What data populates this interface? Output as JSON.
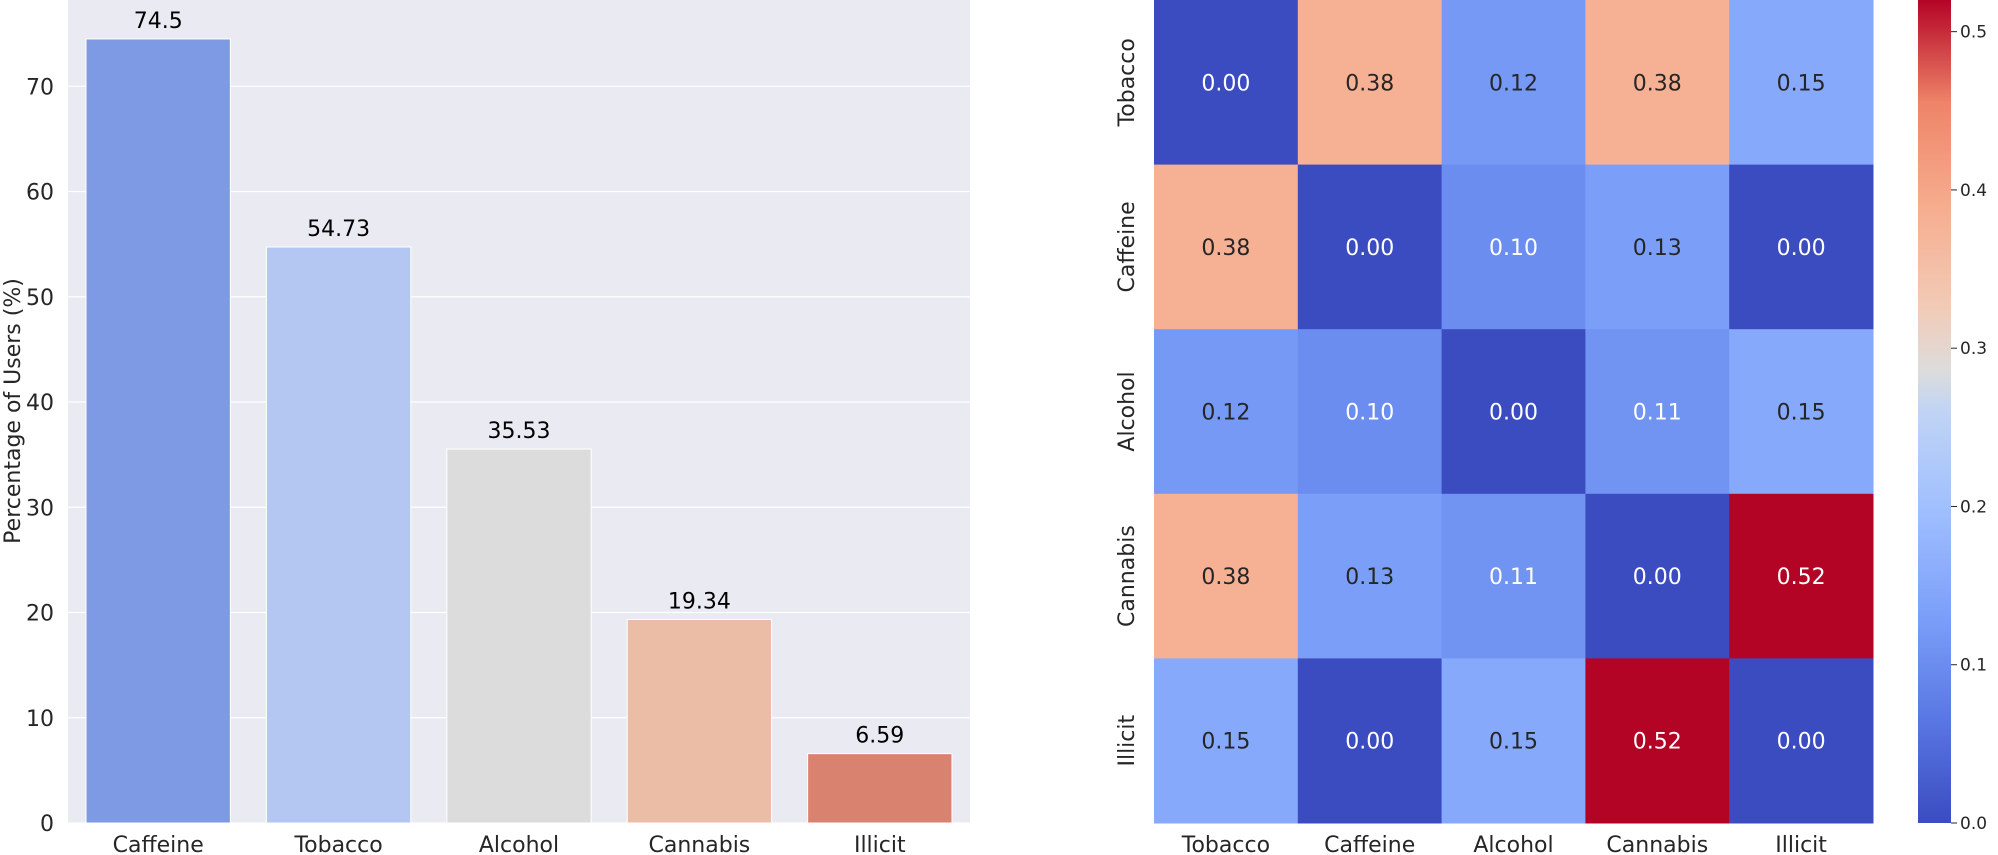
{
  "chart_data": [
    {
      "type": "bar",
      "categories": [
        "Caffeine",
        "Tobacco",
        "Alcohol",
        "Cannabis",
        "Illicit"
      ],
      "values": [
        74.5,
        54.73,
        35.53,
        19.34,
        6.59
      ],
      "value_labels": [
        "74.5",
        "54.73",
        "35.53",
        "19.34",
        "6.59"
      ],
      "colors": [
        "#7f9ae4",
        "#b3c7f2",
        "#dcdcdc",
        "#ecbda6",
        "#d98270"
      ],
      "title": "",
      "xlabel": "",
      "ylabel": "Percentage of Users (%)",
      "ylim": [
        0,
        78.2
      ],
      "yticks": [
        0,
        10,
        20,
        30,
        40,
        50,
        60,
        70
      ],
      "grid": true,
      "background": "#eaeaf2"
    },
    {
      "type": "heatmap",
      "rows": [
        "Tobacco",
        "Caffeine",
        "Alcohol",
        "Cannabis",
        "Illicit"
      ],
      "columns": [
        "Tobacco",
        "Caffeine",
        "Alcohol",
        "Cannabis",
        "Illicit"
      ],
      "values": [
        [
          0.0,
          0.38,
          0.12,
          0.38,
          0.15
        ],
        [
          0.38,
          0.0,
          0.1,
          0.13,
          0.0
        ],
        [
          0.12,
          0.1,
          0.0,
          0.11,
          0.15
        ],
        [
          0.38,
          0.13,
          0.11,
          0.0,
          0.52
        ],
        [
          0.15,
          0.0,
          0.15,
          0.52,
          0.0
        ]
      ],
      "colormap": "coolwarm",
      "vmin": 0.0,
      "vmax": 0.52,
      "colorbar_ticks": [
        0.0,
        0.1,
        0.2,
        0.3,
        0.4,
        0.5
      ],
      "colorbar_tick_labels": [
        "0.0",
        "0.1",
        "0.2",
        "0.3",
        "0.4",
        "0.5"
      ],
      "value_format": "2f"
    }
  ]
}
